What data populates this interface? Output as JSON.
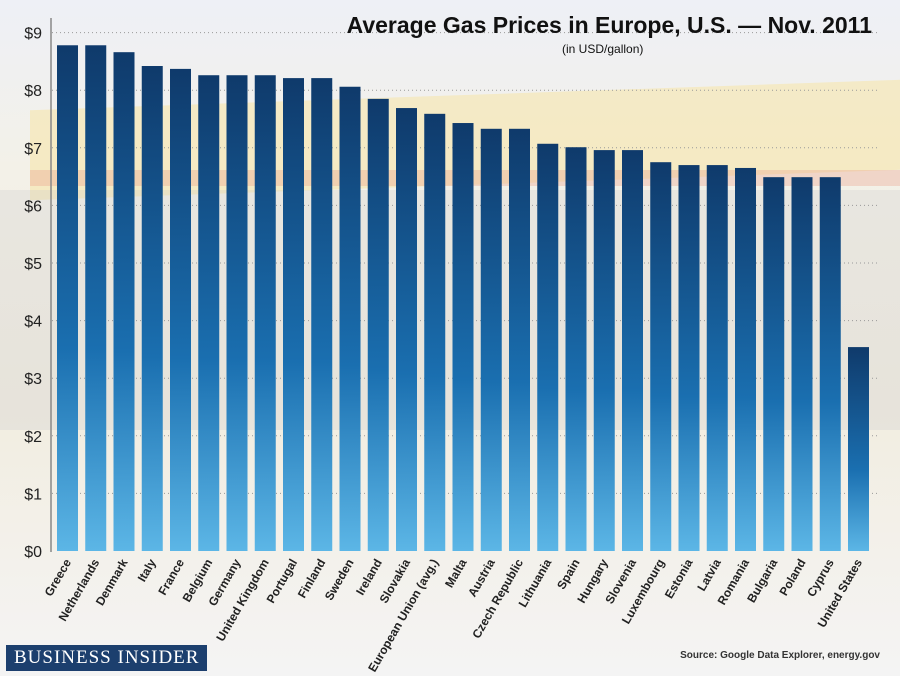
{
  "chart_data": {
    "type": "bar",
    "title": "Average Gas Prices in Europe, U.S. — Nov. 2011",
    "subtitle": "(in USD/gallon)",
    "xlabel": "",
    "ylabel": "",
    "ylim": [
      0,
      9
    ],
    "yticks": [
      "$0",
      "$1",
      "$2",
      "$3",
      "$4",
      "$5",
      "$6",
      "$7",
      "$8",
      "$9"
    ],
    "grid": true,
    "categories": [
      "Greece",
      "Netherlands",
      "Denmark",
      "Italy",
      "France",
      "Belgium",
      "Germany",
      "United Kingdom",
      "Portugal",
      "Finland",
      "Sweden",
      "Ireland",
      "Slovakia",
      "European Union (avg.)",
      "Malta",
      "Austria",
      "Czech Republic",
      "Lithuania",
      "Spain",
      "Hungary",
      "Slovenia",
      "Luxembourg",
      "Estonia",
      "Latvia",
      "Romania",
      "Bulgaria",
      "Poland",
      "Cyprus",
      "United States"
    ],
    "values": [
      8.78,
      8.78,
      8.66,
      8.42,
      8.37,
      8.26,
      8.26,
      8.26,
      8.21,
      8.21,
      8.06,
      7.85,
      7.69,
      7.59,
      7.43,
      7.33,
      7.33,
      7.07,
      7.01,
      6.96,
      6.96,
      6.75,
      6.7,
      6.7,
      6.65,
      6.49,
      6.49,
      6.49,
      3.54
    ]
  },
  "footer": {
    "logo": "BUSINESS INSIDER",
    "source": "Source: Google Data Explorer, energy.gov"
  },
  "colors": {
    "bar_top": "#0f3a6b",
    "bar_mid": "#1a6fb0",
    "bar_bottom": "#5cb6e6"
  }
}
